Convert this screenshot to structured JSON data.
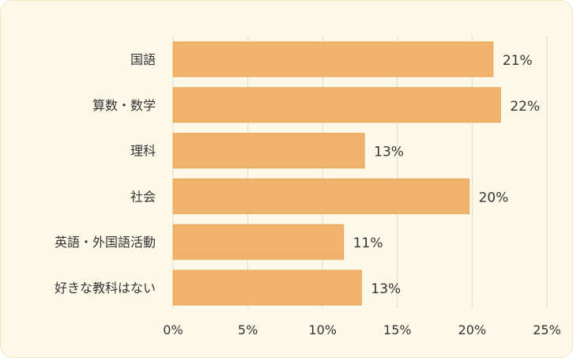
{
  "chart_data": {
    "type": "bar",
    "orientation": "horizontal",
    "categories": [
      "国語",
      "算数・数学",
      "理科",
      "社会",
      "英語・外国語活動",
      "好きな教科はない"
    ],
    "values": [
      21.4,
      21.9,
      12.8,
      19.8,
      11.4,
      12.6
    ],
    "value_labels": [
      "21%",
      "22%",
      "13%",
      "20%",
      "11%",
      "13%"
    ],
    "xlim": [
      0,
      25
    ],
    "x_ticks": [
      0,
      5,
      10,
      15,
      20,
      25
    ],
    "x_tick_labels": [
      "0%",
      "5%",
      "10%",
      "15%",
      "20%",
      "25%"
    ],
    "grid": true,
    "legend": "none",
    "colors": {
      "bar": "#efb36b",
      "bar_stroke": "#e8a75a",
      "grid": "#dddbd0",
      "background": "#fdf9e9"
    }
  }
}
